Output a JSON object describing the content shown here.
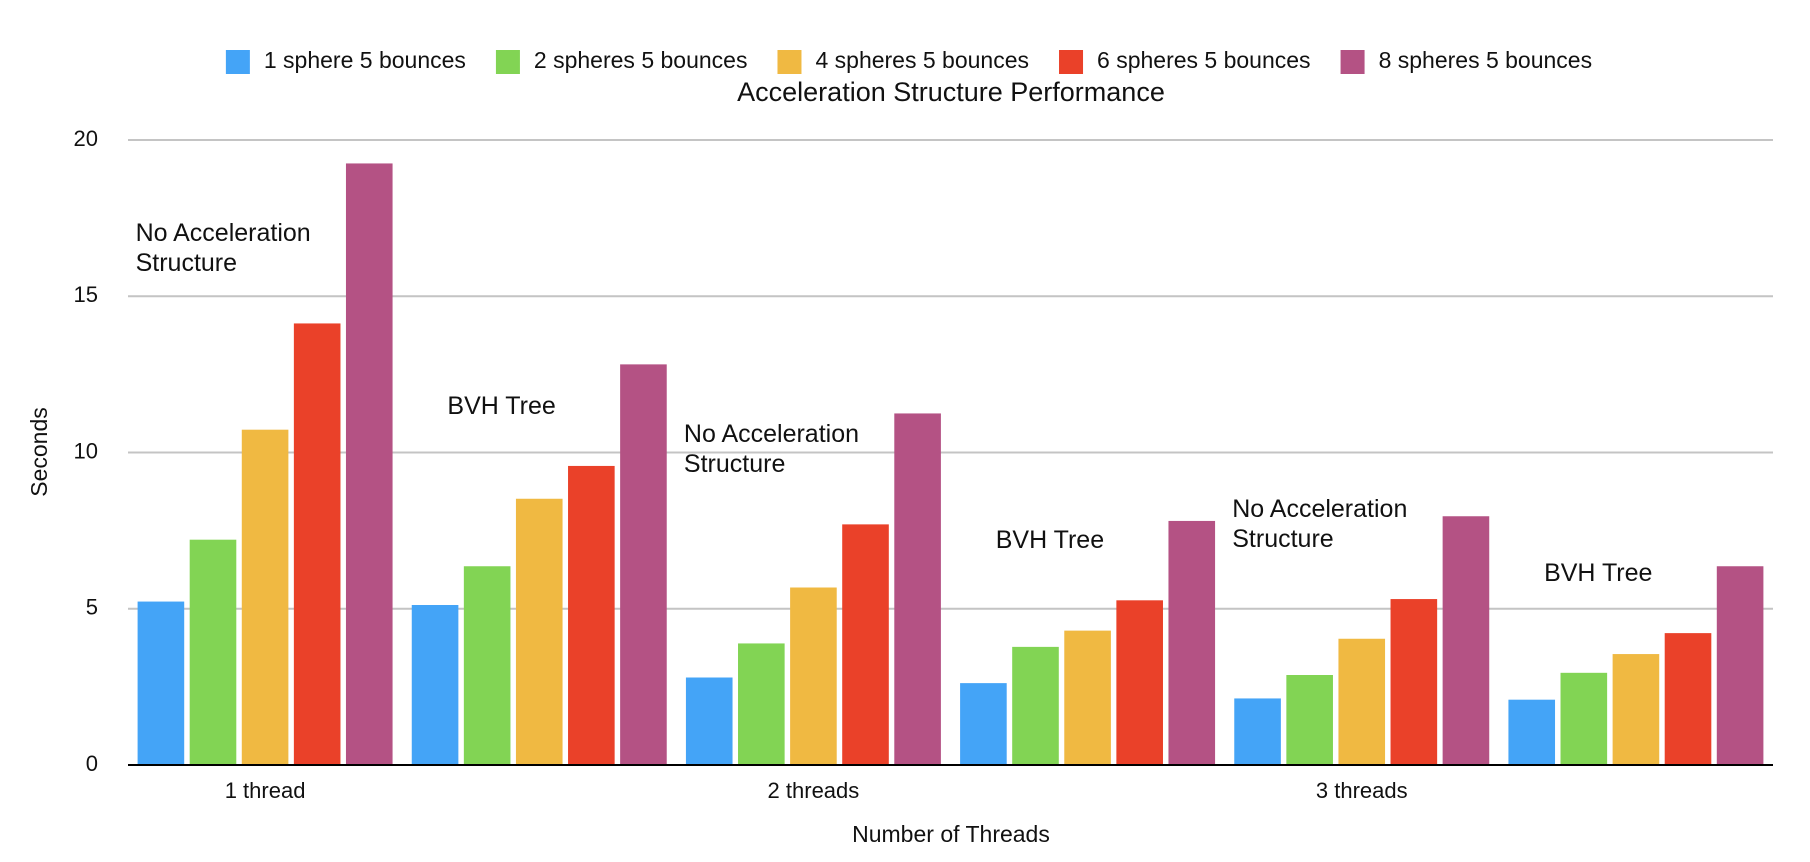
{
  "chart_data": {
    "type": "bar",
    "title": "Acceleration Structure Performance",
    "x_label": "Number of Threads",
    "y_label": "Seconds",
    "categories": [
      "1 thread",
      null,
      "2 threads",
      null,
      "3 threads",
      null
    ],
    "annotations": [
      "No Acceleration Structure",
      "BVH Tree",
      "No Acceleration Structure",
      "BVH Tree",
      "No Acceleration Structure",
      "BVH Tree"
    ],
    "series": [
      {
        "name": "1 sphere 5 bounces",
        "color": "#44a4f7",
        "values": [
          5.23,
          5.12,
          2.8,
          2.62,
          2.13,
          2.09
        ]
      },
      {
        "name": "2 spheres 5 bounces",
        "color": "#82d454",
        "values": [
          7.21,
          6.36,
          3.89,
          3.78,
          2.88,
          2.95
        ]
      },
      {
        "name": "4 spheres 5 bounces",
        "color": "#f0b942",
        "values": [
          10.73,
          8.52,
          5.68,
          4.3,
          4.04,
          3.55
        ]
      },
      {
        "name": "6 spheres 5 bounces",
        "color": "#ea4129",
        "values": [
          14.13,
          9.57,
          7.7,
          5.27,
          5.31,
          4.22
        ]
      },
      {
        "name": "8 spheres 5 bounces",
        "color": "#b45284",
        "values": [
          19.25,
          12.82,
          11.25,
          7.81,
          7.96,
          6.36
        ]
      }
    ],
    "ylim": [
      0,
      20
    ],
    "yticks": [
      0,
      5,
      10,
      15,
      20
    ],
    "grid": true,
    "legend": "top"
  }
}
